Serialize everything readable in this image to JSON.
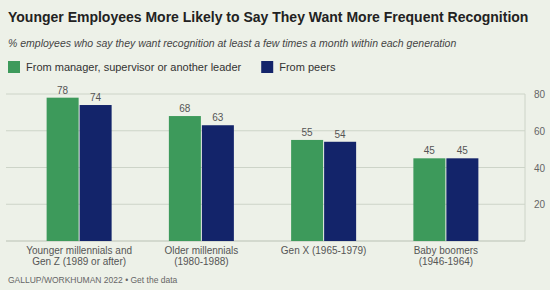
{
  "chart_data": {
    "type": "bar",
    "title": "Younger Employees More Likely to Say They Want More Frequent Recognition",
    "subtitle": "% employees who say they want recognition at least a few times a month within each generation",
    "source": "GALLUP/WORKHUMAN 2022 • Get the data",
    "categories": [
      "Younger millennials and Gen Z (1989 or after)",
      "Older millennials (1980-1988)",
      "Gen X (1965-1979)",
      "Baby boomers (1946-1964)"
    ],
    "series": [
      {
        "name": "From manager, supervisor or another leader",
        "color": "#3d9a5b",
        "values": [
          78,
          68,
          55,
          45
        ]
      },
      {
        "name": "From peers",
        "color": "#13246a",
        "values": [
          74,
          63,
          54,
          45
        ]
      }
    ],
    "ylim": [
      0,
      80
    ],
    "yticks": [
      20,
      40,
      60,
      80
    ],
    "grid": true,
    "legend": "top",
    "data_labels": true
  }
}
